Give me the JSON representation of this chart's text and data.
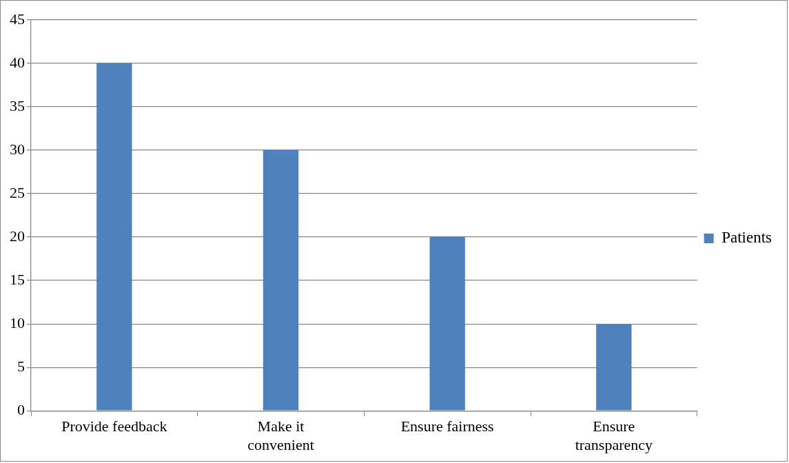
{
  "chart_data": {
    "type": "bar",
    "categories": [
      "Provide feedback",
      "Make it convenient",
      "Ensure fairness",
      "Ensure transparency"
    ],
    "series": [
      {
        "name": "Patients",
        "color": "#4f81bd",
        "values": [
          40,
          30,
          20,
          10
        ]
      }
    ],
    "ylim": [
      0,
      45
    ],
    "yticks": [
      0,
      5,
      10,
      15,
      20,
      25,
      30,
      35,
      40,
      45
    ],
    "grid": "y",
    "legend": "right"
  }
}
